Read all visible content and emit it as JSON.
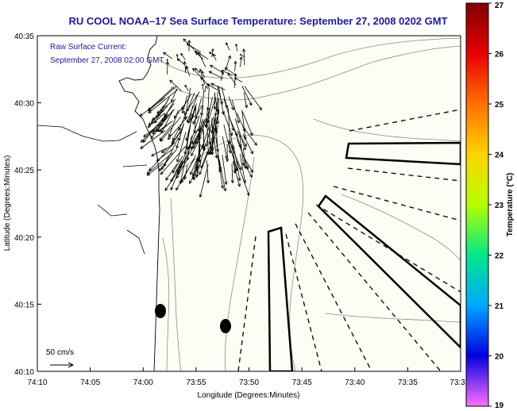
{
  "chart_data": {
    "type": "map",
    "title": "RU COOL  NOAA–17  Sea Surface Temperature:  September 27, 2008 0202 GMT",
    "annotation_lines": [
      "Raw Surface Current:",
      "September 27, 2008 02:00 GMT"
    ],
    "xlabel": "Longitude (Degrees:Minutes)",
    "ylabel": "Latitude (Degrees:Minutes)",
    "x_ticks": [
      "74:10",
      "74:05",
      "74:00",
      "73:55",
      "73:50",
      "73:45",
      "73:40",
      "73:35",
      "73:3"
    ],
    "y_ticks": [
      "40:35",
      "40:30",
      "40:25",
      "40:20",
      "40:15",
      "40:10"
    ],
    "xlim_minutes_west": [
      10,
      30
    ],
    "ylim_minutes_north": [
      10,
      35
    ],
    "scale_bar_label": "50 cm/s",
    "colorbar": {
      "label": "Temperature (°C)",
      "min": 19,
      "max": 27,
      "ticks": [
        "27",
        "26",
        "25",
        "24",
        "23",
        "22",
        "21",
        "20",
        "19"
      ],
      "colors": {
        "c27": "#800000",
        "c26": "#e80000",
        "c25": "#ff7000",
        "c24": "#ffd400",
        "c23": "#b4ff00",
        "c22": "#00e888",
        "c21": "#00a8ff",
        "c20": "#0000e0",
        "c19": "#ff70ff"
      }
    },
    "colors": {
      "title": "#1a1aa6",
      "land": "#ffffff",
      "water": "#fdfdf6",
      "vectors": "#000000",
      "contour": "#8a8a8a"
    }
  }
}
